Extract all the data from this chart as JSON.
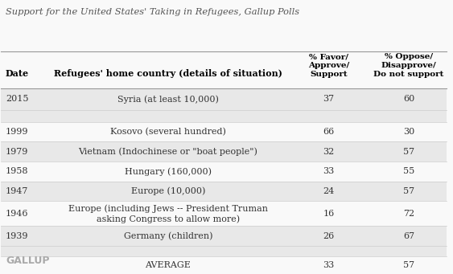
{
  "title": "Support for the United States' Taking in Refugees, Gallup Polls",
  "header_col1": "Date",
  "header_col2": "Refugees' home country (details of situation)",
  "header_col3": "% Favor/\nApprove/\nSupport",
  "header_col4": "% Oppose/\nDisapprove/\nDo not support",
  "rows": [
    {
      "date": "2015",
      "country": "Syria (at least 10,000)",
      "favor": "37",
      "oppose": "60",
      "shaded": true
    },
    {
      "date": "",
      "country": "",
      "favor": "",
      "oppose": "",
      "shaded": false
    },
    {
      "date": "1999",
      "country": "Kosovo (several hundred)",
      "favor": "66",
      "oppose": "30",
      "shaded": false
    },
    {
      "date": "1979",
      "country": "Vietnam (Indochinese or \"boat people\")",
      "favor": "32",
      "oppose": "57",
      "shaded": true
    },
    {
      "date": "1958",
      "country": "Hungary (160,000)",
      "favor": "33",
      "oppose": "55",
      "shaded": false
    },
    {
      "date": "1947",
      "country": "Europe (10,000)",
      "favor": "24",
      "oppose": "57",
      "shaded": true
    },
    {
      "date": "1946",
      "country": "Europe (including Jews -- President Truman\nasking Congress to allow more)",
      "favor": "16",
      "oppose": "72",
      "shaded": false
    },
    {
      "date": "1939",
      "country": "Germany (children)",
      "favor": "26",
      "oppose": "67",
      "shaded": true
    }
  ],
  "average_row": {
    "country": "AVERAGE",
    "favor": "33",
    "oppose": "57"
  },
  "footer": "GALLUP",
  "shaded_color": "#e8e8e8",
  "white_color": "#f9f9f9",
  "title_color": "#555555",
  "text_color": "#333333",
  "line_color_dark": "#999999",
  "line_color_light": "#cccccc"
}
